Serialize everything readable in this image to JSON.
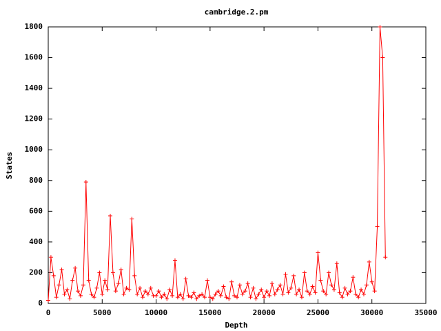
{
  "chart_data": {
    "type": "line",
    "title": "cambridge.2.pm",
    "x_label": "Depth",
    "y_label": "States",
    "xlim": [
      0,
      35000
    ],
    "xticks": [
      0,
      5000,
      10000,
      15000,
      20000,
      25000,
      30000,
      35000
    ],
    "ylim": [
      0,
      1800
    ],
    "yticks": [
      0,
      200,
      400,
      600,
      800,
      1000,
      1200,
      1400,
      1600,
      1800
    ],
    "series": [
      {
        "color": "#ff0000",
        "x": [
          0,
          250,
          500,
          750,
          1000,
          1250,
          1500,
          1750,
          2000,
          2250,
          2500,
          2750,
          3000,
          3250,
          3500,
          3750,
          4000,
          4250,
          4500,
          4750,
          5000,
          5250,
          5500,
          5750,
          6000,
          6250,
          6500,
          6750,
          7000,
          7250,
          7500,
          7750,
          8000,
          8250,
          8500,
          8750,
          9000,
          9250,
          9500,
          9750,
          10000,
          10250,
          10500,
          10750,
          11000,
          11250,
          11500,
          11750,
          12000,
          12250,
          12500,
          12750,
          13000,
          13250,
          13500,
          13750,
          14000,
          14250,
          14500,
          14750,
          15000,
          15250,
          15500,
          15750,
          16000,
          16250,
          16500,
          16750,
          17000,
          17250,
          17500,
          17750,
          18000,
          18250,
          18500,
          18750,
          19000,
          19250,
          19500,
          19750,
          20000,
          20250,
          20500,
          20750,
          21000,
          21250,
          21500,
          21750,
          22000,
          22250,
          22500,
          22750,
          23000,
          23250,
          23500,
          23750,
          24000,
          24250,
          24500,
          24750,
          25000,
          25250,
          25500,
          25750,
          26000,
          26250,
          26500,
          26750,
          27000,
          27250,
          27500,
          27750,
          28000,
          28250,
          28500,
          28750,
          29000,
          29250,
          29500,
          29750,
          30000,
          30250,
          30500,
          30750,
          31000,
          31250
        ],
        "values": [
          20,
          300,
          180,
          40,
          120,
          220,
          60,
          90,
          30,
          150,
          230,
          80,
          50,
          120,
          790,
          150,
          60,
          40,
          100,
          200,
          60,
          150,
          90,
          570,
          200,
          80,
          130,
          220,
          60,
          100,
          90,
          550,
          180,
          60,
          100,
          40,
          80,
          60,
          100,
          50,
          50,
          80,
          40,
          60,
          30,
          90,
          50,
          280,
          40,
          60,
          30,
          160,
          50,
          40,
          70,
          30,
          50,
          60,
          40,
          150,
          40,
          30,
          60,
          80,
          50,
          110,
          40,
          30,
          140,
          50,
          40,
          120,
          60,
          80,
          130,
          40,
          100,
          30,
          60,
          90,
          40,
          80,
          50,
          130,
          60,
          90,
          120,
          60,
          190,
          70,
          100,
          180,
          60,
          90,
          40,
          200,
          80,
          60,
          110,
          70,
          330,
          150,
          80,
          60,
          200,
          120,
          90,
          260,
          70,
          40,
          100,
          60,
          80,
          170,
          60,
          40,
          90,
          60,
          120,
          270,
          140,
          80,
          500,
          1800,
          1600,
          300
        ]
      }
    ]
  }
}
